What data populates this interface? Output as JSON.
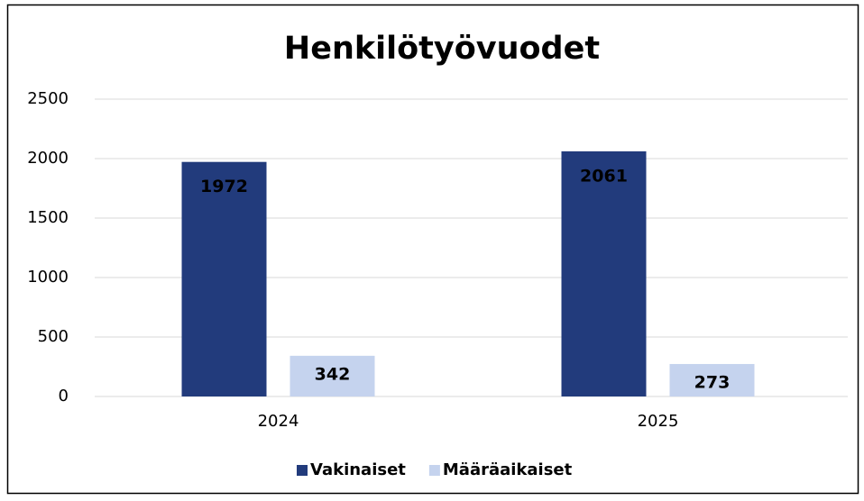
{
  "chart_data": {
    "type": "bar",
    "title": "Henkilötyövuodet",
    "categories": [
      "2024",
      "2025"
    ],
    "series": [
      {
        "name": "Vakinaiset",
        "color": "#223b7c",
        "values": [
          1972,
          2061
        ]
      },
      {
        "name": "Määräaikaiset",
        "color": "#c5d3ee",
        "values": [
          342,
          273
        ]
      }
    ],
    "ylim": [
      0,
      2500
    ],
    "yticks": [
      0,
      500,
      1000,
      1500,
      2000,
      2500
    ],
    "grid": true,
    "legend": "bottom"
  }
}
